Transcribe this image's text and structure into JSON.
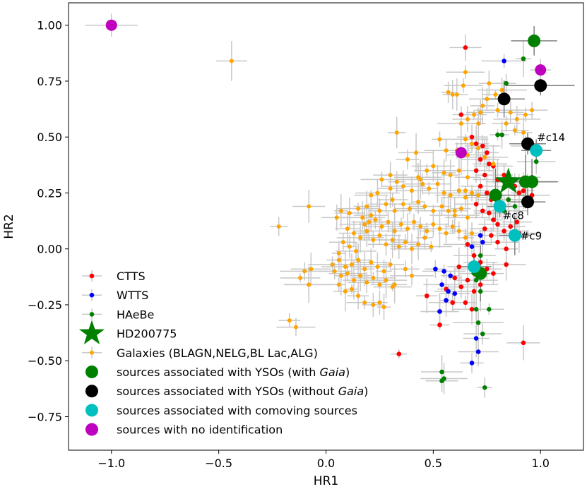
{
  "chart_data": {
    "type": "scatter",
    "title": "",
    "xlabel": "HR1",
    "ylabel": "HR2",
    "xlim": [
      -1.2,
      1.2
    ],
    "ylim": [
      -0.9,
      1.1
    ],
    "xticks": [
      -1.0,
      -0.5,
      0.0,
      0.5,
      1.0
    ],
    "xtick_labels": [
      "−1.0",
      "−0.5",
      "0.0",
      "0.5",
      "1.0"
    ],
    "yticks": [
      -0.75,
      -0.5,
      -0.25,
      0.0,
      0.25,
      0.5,
      0.75,
      1.0
    ],
    "ytick_labels": [
      "−0.75",
      "−0.50",
      "−0.25",
      "0.00",
      "0.25",
      "0.50",
      "0.75",
      "1.00"
    ],
    "legend_position": "lower-left",
    "colors": {
      "ctts": "#ff0000",
      "wtts": "#0000ff",
      "haebe": "#008000",
      "galaxies": "#ffa500",
      "gaia": "#008000",
      "nogaia": "#000000",
      "comoving": "#00bfbf",
      "noid": "#bf00bf",
      "errorbar_light": "#c8c8c8",
      "errorbar_dark": "#808080"
    },
    "legend": [
      {
        "key": "ctts",
        "label": "CTTS"
      },
      {
        "key": "wtts",
        "label": "WTTS"
      },
      {
        "key": "haebe",
        "label": "HAeBe"
      },
      {
        "key": "hd",
        "label": "HD200775"
      },
      {
        "key": "galaxies",
        "label": "Galaxies (BLAGN,NELG,BL Lac,ALG)"
      },
      {
        "key": "gaia",
        "label_pre": "sources associated with YSOs (with ",
        "label_it": "Gaia",
        "label_post": ")"
      },
      {
        "key": "nogaia",
        "label_pre": "sources associated with YSOs (without ",
        "label_it": "Gaia",
        "label_post": ")"
      },
      {
        "key": "comoving",
        "label": "sources associated with comoving sources"
      },
      {
        "key": "noid",
        "label": "sources with no identification"
      }
    ],
    "series": [
      {
        "name": "CTTS",
        "key": "ctts",
        "points": [
          [
            0.65,
            0.9
          ],
          [
            0.63,
            0.6
          ],
          [
            0.68,
            0.5
          ],
          [
            0.7,
            0.47
          ],
          [
            0.73,
            0.46
          ],
          [
            0.75,
            0.43
          ],
          [
            0.72,
            0.4
          ],
          [
            0.76,
            0.38
          ],
          [
            0.78,
            0.37
          ],
          [
            0.7,
            0.35
          ],
          [
            0.74,
            0.33
          ],
          [
            0.8,
            0.31
          ],
          [
            0.83,
            0.33
          ],
          [
            0.86,
            0.3
          ],
          [
            0.88,
            0.28
          ],
          [
            0.72,
            0.28
          ],
          [
            0.75,
            0.25
          ],
          [
            0.77,
            0.22
          ],
          [
            0.8,
            0.24
          ],
          [
            0.82,
            0.2
          ],
          [
            0.85,
            0.22
          ],
          [
            0.9,
            0.25
          ],
          [
            0.92,
            0.26
          ],
          [
            0.94,
            0.3
          ],
          [
            0.96,
            0.24
          ],
          [
            0.7,
            0.2
          ],
          [
            0.73,
            0.17
          ],
          [
            0.76,
            0.16
          ],
          [
            0.78,
            0.13
          ],
          [
            0.8,
            0.11
          ],
          [
            0.83,
            0.08
          ],
          [
            0.86,
            0.1
          ],
          [
            0.89,
            0.12
          ],
          [
            0.74,
            0.09
          ],
          [
            0.77,
            0.06
          ],
          [
            0.8,
            0.03
          ],
          [
            0.84,
            0.0
          ],
          [
            0.9,
            0.07
          ],
          [
            0.66,
            0.02
          ],
          [
            0.69,
            -0.03
          ],
          [
            0.72,
            -0.06
          ],
          [
            0.75,
            -0.09
          ],
          [
            0.78,
            -0.11
          ],
          [
            0.84,
            -0.07
          ],
          [
            0.62,
            -0.08
          ],
          [
            0.6,
            -0.13
          ],
          [
            0.63,
            -0.17
          ],
          [
            0.66,
            -0.14
          ],
          [
            0.69,
            -0.19
          ],
          [
            0.72,
            -0.16
          ],
          [
            0.56,
            -0.18
          ],
          [
            0.59,
            -0.24
          ],
          [
            0.65,
            -0.24
          ],
          [
            0.68,
            -0.27
          ],
          [
            0.53,
            -0.28
          ],
          [
            0.47,
            -0.21
          ],
          [
            0.53,
            -0.34
          ],
          [
            0.34,
            -0.47
          ],
          [
            0.92,
            -0.42
          ]
        ]
      },
      {
        "name": "WTTS",
        "key": "wtts",
        "points": [
          [
            0.83,
            0.84
          ],
          [
            0.72,
            0.06
          ],
          [
            0.73,
            0.03
          ],
          [
            0.68,
            0.01
          ],
          [
            0.51,
            -0.09
          ],
          [
            0.55,
            -0.1
          ],
          [
            0.58,
            -0.12
          ],
          [
            0.54,
            -0.16
          ],
          [
            0.57,
            -0.19
          ],
          [
            0.6,
            -0.2
          ],
          [
            0.56,
            -0.23
          ],
          [
            0.53,
            -0.28
          ],
          [
            0.7,
            -0.4
          ],
          [
            0.71,
            -0.46
          ],
          [
            0.68,
            -0.51
          ]
        ]
      },
      {
        "name": "HAeBe",
        "key": "haebe",
        "points": [
          [
            0.92,
            0.85
          ],
          [
            0.8,
            0.51
          ],
          [
            0.84,
            0.74
          ],
          [
            0.82,
            0.51
          ],
          [
            0.93,
            0.46
          ],
          [
            0.85,
            0.22
          ],
          [
            0.88,
            0.19
          ],
          [
            0.96,
            0.32
          ],
          [
            0.98,
            0.39
          ],
          [
            0.83,
            0.17
          ],
          [
            0.72,
            -0.03
          ],
          [
            0.71,
            -0.09
          ],
          [
            0.69,
            -0.11
          ],
          [
            0.7,
            -0.14
          ],
          [
            0.72,
            -0.19
          ],
          [
            0.7,
            -0.27
          ],
          [
            0.76,
            -0.27
          ],
          [
            0.71,
            -0.33
          ],
          [
            0.73,
            -0.38
          ],
          [
            0.54,
            -0.55
          ],
          [
            0.54,
            -0.59
          ],
          [
            0.55,
            -0.58
          ],
          [
            0.74,
            -0.62
          ]
        ]
      },
      {
        "name": "Galaxies",
        "key": "galaxies",
        "points": [
          [
            -0.44,
            0.84
          ],
          [
            0.65,
            0.79
          ],
          [
            0.64,
            0.73
          ],
          [
            0.76,
            0.74
          ],
          [
            0.79,
            0.69
          ],
          [
            0.82,
            0.71
          ],
          [
            0.57,
            0.7
          ],
          [
            0.59,
            0.69
          ],
          [
            0.61,
            0.69
          ],
          [
            0.73,
            0.64
          ],
          [
            0.75,
            0.67
          ],
          [
            0.8,
            0.62
          ],
          [
            0.86,
            0.61
          ],
          [
            0.89,
            0.58
          ],
          [
            0.93,
            0.6
          ],
          [
            0.96,
            0.62
          ],
          [
            0.72,
            0.61
          ],
          [
            0.69,
            0.6
          ],
          [
            0.71,
            0.56
          ],
          [
            0.66,
            0.58
          ],
          [
            0.63,
            0.56
          ],
          [
            0.84,
            0.56
          ],
          [
            0.88,
            0.53
          ],
          [
            0.92,
            0.52
          ],
          [
            0.65,
            0.49
          ],
          [
            0.68,
            0.47
          ],
          [
            0.61,
            0.44
          ],
          [
            0.66,
            0.42
          ],
          [
            0.71,
            0.45
          ],
          [
            0.74,
            0.41
          ],
          [
            0.78,
            0.38
          ],
          [
            0.56,
            0.44
          ],
          [
            0.53,
            0.49
          ],
          [
            0.33,
            0.52
          ],
          [
            0.42,
            0.43
          ],
          [
            0.38,
            0.4
          ],
          [
            0.47,
            0.35
          ],
          [
            0.43,
            0.32
          ],
          [
            0.5,
            0.37
          ],
          [
            0.55,
            0.34
          ],
          [
            0.58,
            0.33
          ],
          [
            0.62,
            0.35
          ],
          [
            0.66,
            0.32
          ],
          [
            0.3,
            0.33
          ],
          [
            0.33,
            0.3
          ],
          [
            0.36,
            0.28
          ],
          [
            0.4,
            0.26
          ],
          [
            0.45,
            0.29
          ],
          [
            0.48,
            0.27
          ],
          [
            0.52,
            0.29
          ],
          [
            0.55,
            0.25
          ],
          [
            0.58,
            0.24
          ],
          [
            0.62,
            0.26
          ],
          [
            0.65,
            0.23
          ],
          [
            0.68,
            0.25
          ],
          [
            0.71,
            0.24
          ],
          [
            0.3,
            0.27
          ],
          [
            0.24,
            0.25
          ],
          [
            0.21,
            0.24
          ],
          [
            0.31,
            0.22
          ],
          [
            0.28,
            0.2
          ],
          [
            0.25,
            0.17
          ],
          [
            0.32,
            0.17
          ],
          [
            0.36,
            0.2
          ],
          [
            0.39,
            0.18
          ],
          [
            0.43,
            0.21
          ],
          [
            0.46,
            0.19
          ],
          [
            0.5,
            0.17
          ],
          [
            0.54,
            0.19
          ],
          [
            0.57,
            0.17
          ],
          [
            0.6,
            0.15
          ],
          [
            0.63,
            0.18
          ],
          [
            0.66,
            0.14
          ],
          [
            0.17,
            0.14
          ],
          [
            0.2,
            0.12
          ],
          [
            0.23,
            0.13
          ],
          [
            0.26,
            0.1
          ],
          [
            0.29,
            0.12
          ],
          [
            0.32,
            0.08
          ],
          [
            0.35,
            0.11
          ],
          [
            0.38,
            0.09
          ],
          [
            0.41,
            0.12
          ],
          [
            0.44,
            0.1
          ],
          [
            0.47,
            0.08
          ],
          [
            0.5,
            0.11
          ],
          [
            0.53,
            0.09
          ],
          [
            0.56,
            0.07
          ],
          [
            0.59,
            0.1
          ],
          [
            0.62,
            0.08
          ],
          [
            0.65,
            0.05
          ],
          [
            0.68,
            0.07
          ],
          [
            0.1,
            0.09
          ],
          [
            0.13,
            0.07
          ],
          [
            0.16,
            0.05
          ],
          [
            0.19,
            0.08
          ],
          [
            0.22,
            0.04
          ],
          [
            0.25,
            0.06
          ],
          [
            0.28,
            0.02
          ],
          [
            0.31,
            0.04
          ],
          [
            0.34,
            0.01
          ],
          [
            0.37,
            0.03
          ],
          [
            0.4,
            0.0
          ],
          [
            0.43,
            0.02
          ],
          [
            0.46,
            0.05
          ],
          [
            0.49,
            0.01
          ],
          [
            0.08,
            0.03
          ],
          [
            0.11,
            0.01
          ],
          [
            0.14,
            -0.01
          ],
          [
            0.06,
            -0.02
          ],
          [
            0.05,
            0.14
          ],
          [
            0.07,
            0.17
          ],
          [
            0.11,
            0.16
          ],
          [
            0.15,
            0.18
          ],
          [
            0.18,
            0.11
          ],
          [
            0.03,
            -0.07
          ],
          [
            0.06,
            -0.05
          ],
          [
            0.09,
            -0.08
          ],
          [
            0.12,
            -0.07
          ],
          [
            0.15,
            -0.05
          ],
          [
            0.18,
            -0.09
          ],
          [
            0.21,
            -0.06
          ],
          [
            0.24,
            -0.08
          ],
          [
            0.27,
            -0.1
          ],
          [
            0.3,
            -0.07
          ],
          [
            0.04,
            -0.1
          ],
          [
            0.07,
            -0.12
          ],
          [
            0.1,
            -0.11
          ],
          [
            0.13,
            -0.14
          ],
          [
            0.16,
            -0.12
          ],
          [
            0.19,
            -0.15
          ],
          [
            0.22,
            -0.13
          ],
          [
            0.25,
            -0.16
          ],
          [
            0.28,
            -0.14
          ],
          [
            0.31,
            -0.17
          ],
          [
            0.06,
            -0.16
          ],
          [
            0.09,
            -0.19
          ],
          [
            0.12,
            -0.18
          ],
          [
            0.15,
            -0.21
          ],
          [
            0.18,
            -0.24
          ],
          [
            0.22,
            -0.25
          ],
          [
            0.25,
            -0.24
          ],
          [
            0.27,
            -0.26
          ],
          [
            -0.07,
            -0.09
          ],
          [
            -0.1,
            -0.1
          ],
          [
            -0.08,
            -0.16
          ],
          [
            -0.12,
            -0.13
          ],
          [
            -0.22,
            0.1
          ],
          [
            -0.08,
            0.19
          ],
          [
            -0.07,
            -0.09
          ],
          [
            -0.08,
            -0.16
          ],
          [
            -0.17,
            -0.32
          ],
          [
            -0.14,
            -0.35
          ],
          [
            0.4,
            -0.12
          ],
          [
            0.37,
            -0.09
          ],
          [
            0.32,
            -0.16
          ],
          [
            0.65,
            0.26
          ],
          [
            0.6,
            0.17
          ],
          [
            0.44,
            0.31
          ],
          [
            0.26,
            0.31
          ],
          [
            0.19,
            0.19
          ],
          [
            0.21,
            0.15
          ]
        ]
      },
      {
        "name": "sources associated with YSOs (with Gaia)",
        "key": "gaia",
        "points": [
          [
            0.97,
            0.93
          ],
          [
            0.79,
            0.24
          ],
          [
            0.93,
            0.3
          ],
          [
            0.96,
            0.3
          ],
          [
            0.72,
            -0.11
          ]
        ]
      },
      {
        "name": "sources associated with YSOs (without Gaia)",
        "key": "nogaia",
        "points": [
          [
            1.0,
            0.73
          ],
          [
            0.83,
            0.67
          ],
          [
            0.94,
            0.47
          ],
          [
            0.94,
            0.21
          ]
        ]
      },
      {
        "name": "sources associated with comoving sources",
        "key": "comoving",
        "points": [
          [
            0.98,
            0.44
          ],
          [
            0.81,
            0.19
          ],
          [
            0.88,
            0.06
          ],
          [
            0.69,
            -0.08
          ]
        ]
      },
      {
        "name": "sources with no identification",
        "key": "noid",
        "points": [
          [
            -1.0,
            1.0
          ],
          [
            1.0,
            0.8
          ],
          [
            0.63,
            0.43
          ]
        ]
      }
    ],
    "hd200775": [
      0.85,
      0.3
    ],
    "annotations": [
      {
        "text": "#c14",
        "at": [
          0.98,
          0.44
        ]
      },
      {
        "text": "#c8",
        "at": [
          0.81,
          0.19
        ]
      },
      {
        "text": "#c9",
        "at": [
          0.88,
          0.06
        ]
      }
    ]
  }
}
